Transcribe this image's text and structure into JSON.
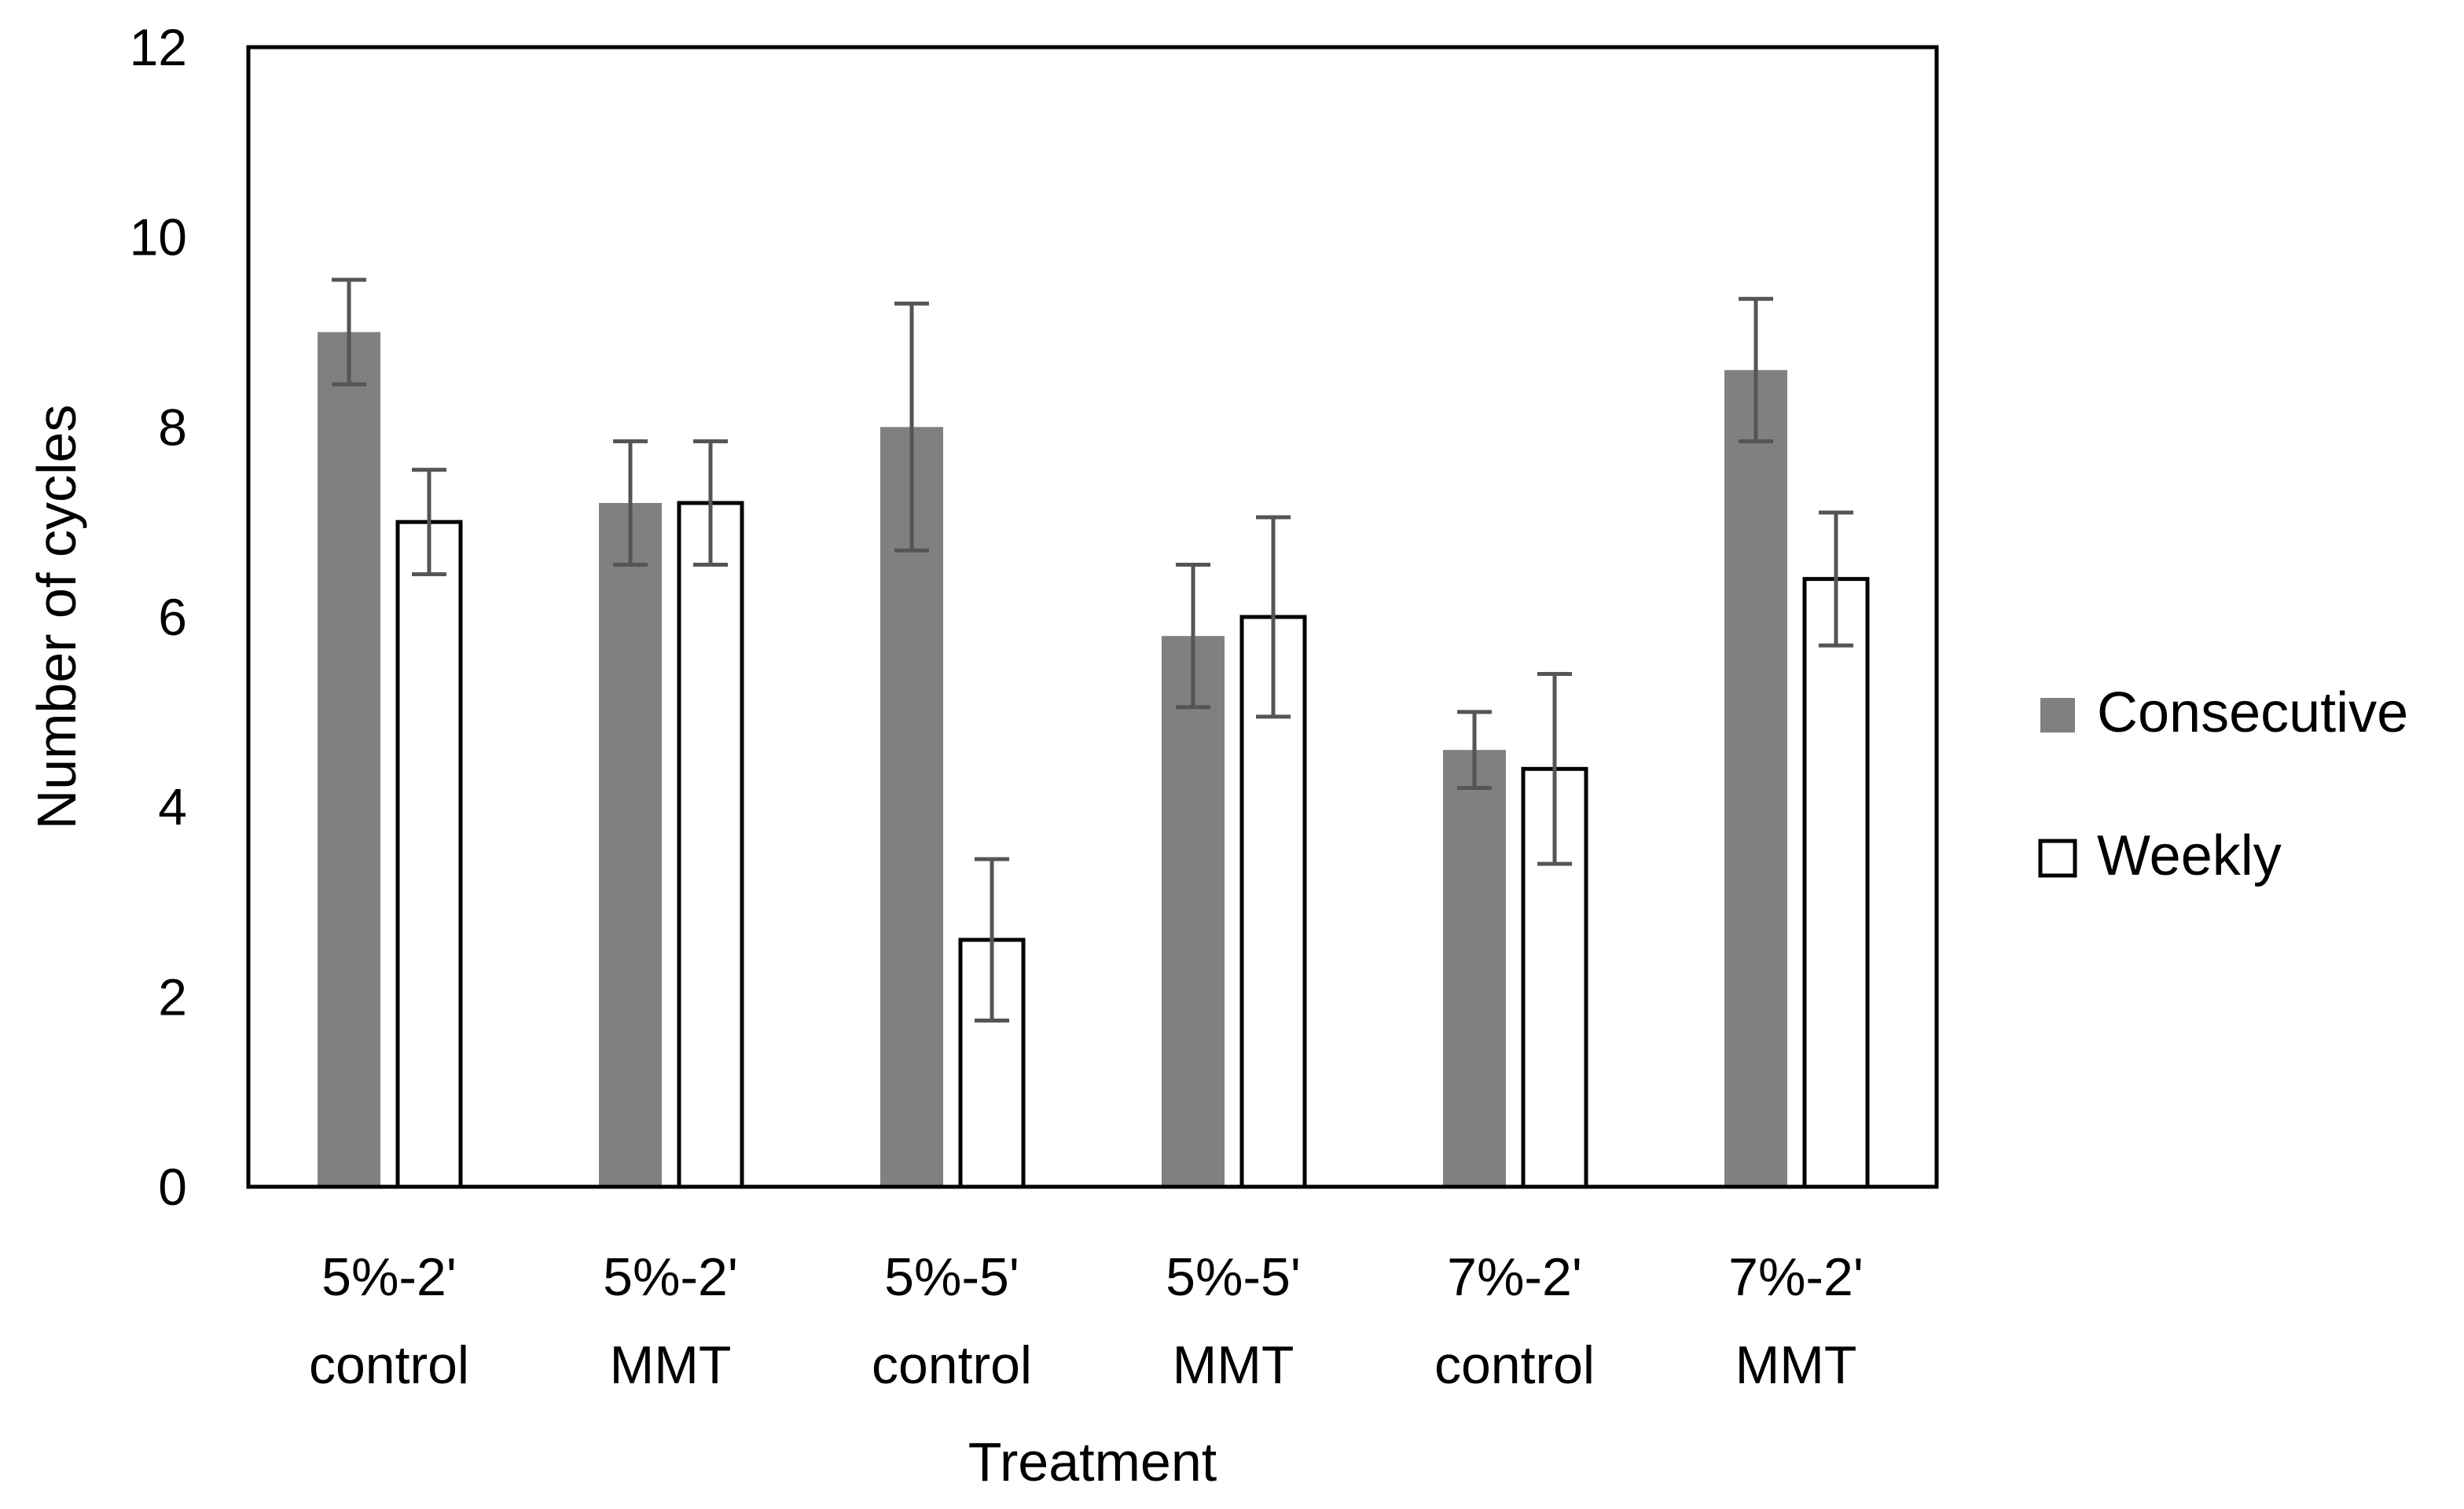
{
  "chart_data": {
    "type": "bar",
    "title": "",
    "xlabel": "Treatment",
    "ylabel": "Number of cycles",
    "ylim": [
      0,
      12
    ],
    "yticks": [
      0,
      2,
      4,
      6,
      8,
      10,
      12
    ],
    "grid": false,
    "legend_position": "right",
    "categories": [
      [
        "5%-2'",
        "control"
      ],
      [
        "5%-2'",
        "MMT"
      ],
      [
        "5%-5'",
        "control"
      ],
      [
        "5%-5'",
        "MMT"
      ],
      [
        "7%-2'",
        "control"
      ],
      [
        "7%-2'",
        "MMT"
      ]
    ],
    "series": [
      {
        "name": "Consecutive",
        "color": "#808080",
        "values": [
          9.0,
          7.2,
          8.0,
          5.8,
          4.6,
          8.6
        ],
        "error": [
          0.55,
          0.65,
          1.3,
          0.75,
          0.4,
          0.75
        ]
      },
      {
        "name": "Weekly",
        "color": "#ffffff",
        "stroke": "#000000",
        "values": [
          7.0,
          7.2,
          2.6,
          6.0,
          4.4,
          6.4
        ],
        "error": [
          0.55,
          0.65,
          0.85,
          1.05,
          1.0,
          0.7
        ]
      }
    ],
    "errorbar_color": "#555555"
  }
}
